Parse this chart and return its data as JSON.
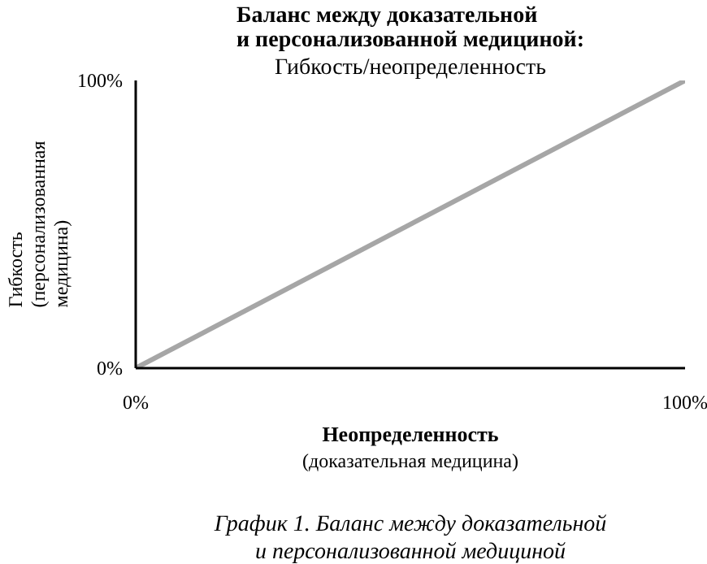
{
  "chart_data": {
    "type": "line",
    "title": "Баланс между доказательной\nи персонализованной медициной:",
    "subtitle": "Гибкость/неопределенность",
    "xlabel": "Неопределенность\n(доказательная медицина)",
    "ylabel": "Гибкость\n(персонализованная\nмедицина)",
    "annotations": [
      "График 1. Баланс между доказательной\nи персонализованной медициной"
    ],
    "x": [
      0,
      100
    ],
    "series": [
      {
        "color": "#a6a6a6",
        "values": [
          0,
          100
        ]
      }
    ],
    "xlim": [
      0,
      100
    ],
    "ylim": [
      0,
      100
    ],
    "xticks": [
      {
        "value": 0,
        "label": "0%"
      },
      {
        "value": 100,
        "label": "100%"
      }
    ],
    "yticks": [
      {
        "value": 0,
        "label": "0%"
      },
      {
        "value": 100,
        "label": "100%"
      }
    ],
    "marker": "none",
    "line_style": "solid"
  }
}
